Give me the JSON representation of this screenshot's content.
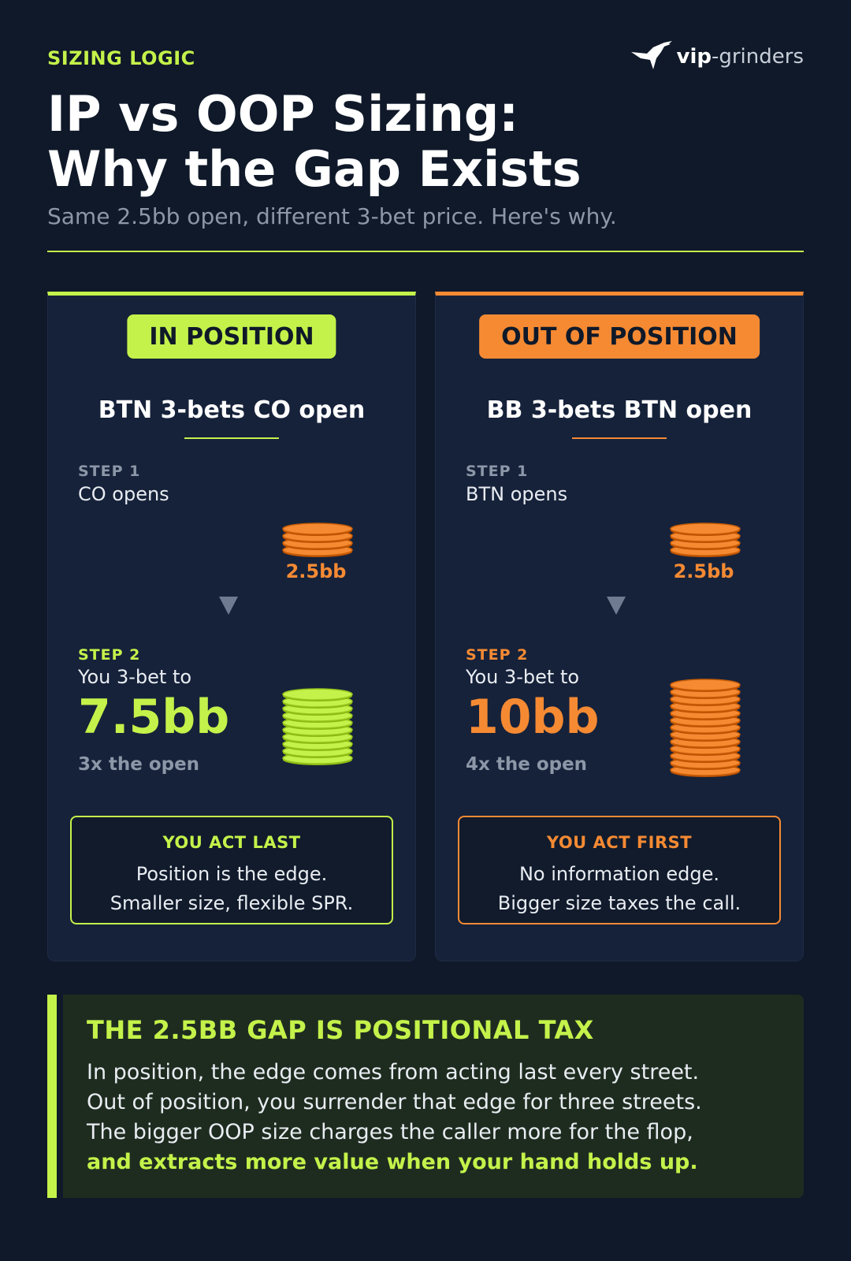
{
  "header": {
    "eyebrow": "SIZING LOGIC",
    "logo_bold": "vip",
    "logo_rest": "-grinders",
    "title_line1": "IP vs OOP Sizing:",
    "title_line2": "Why the Gap Exists",
    "subtitle": "Same 2.5bb open, different 3-bet price. Here's why."
  },
  "colors": {
    "background": "#0f1929",
    "card": "#16223a",
    "lime_accent": "#c4f24a",
    "orange_accent": "#f58a33",
    "muted_text": "#8c97a8"
  },
  "cards": {
    "ip": {
      "badge": "IN POSITION",
      "scenario": "BTN 3-bets CO open",
      "step1_label": "STEP 1",
      "step1_text": "CO opens",
      "open_amount": "2.5bb",
      "step2_label": "STEP 2",
      "step2_text": "You 3-bet to",
      "threebet_amount": "7.5bb",
      "multiple": "3x the open",
      "note_head": "YOU ACT LAST",
      "note_line1": "Position is the edge.",
      "note_line2": "Smaller size, flexible SPR.",
      "small_chip_count": 4,
      "big_chip_count": 10,
      "chip_color": "lime"
    },
    "oop": {
      "badge": "OUT OF POSITION",
      "scenario": "BB 3-bets BTN open",
      "step1_label": "STEP 1",
      "step1_text": "BTN opens",
      "open_amount": "2.5bb",
      "step2_label": "STEP 2",
      "step2_text": "You 3-bet to",
      "threebet_amount": "10bb",
      "multiple": "4x the open",
      "note_head": "YOU ACT FIRST",
      "note_line1": "No information edge.",
      "note_line2": "Bigger size taxes the call.",
      "small_chip_count": 4,
      "big_chip_count": 13,
      "chip_color": "orange"
    }
  },
  "takeaway": {
    "heading": "THE 2.5BB GAP IS POSITIONAL TAX",
    "line1": "In position, the edge comes from acting last every street.",
    "line2": "Out of position, you surrender that edge for three streets.",
    "line3": "The bigger OOP size charges the caller more for the flop,",
    "line4": "and extracts more value when your hand holds up."
  }
}
